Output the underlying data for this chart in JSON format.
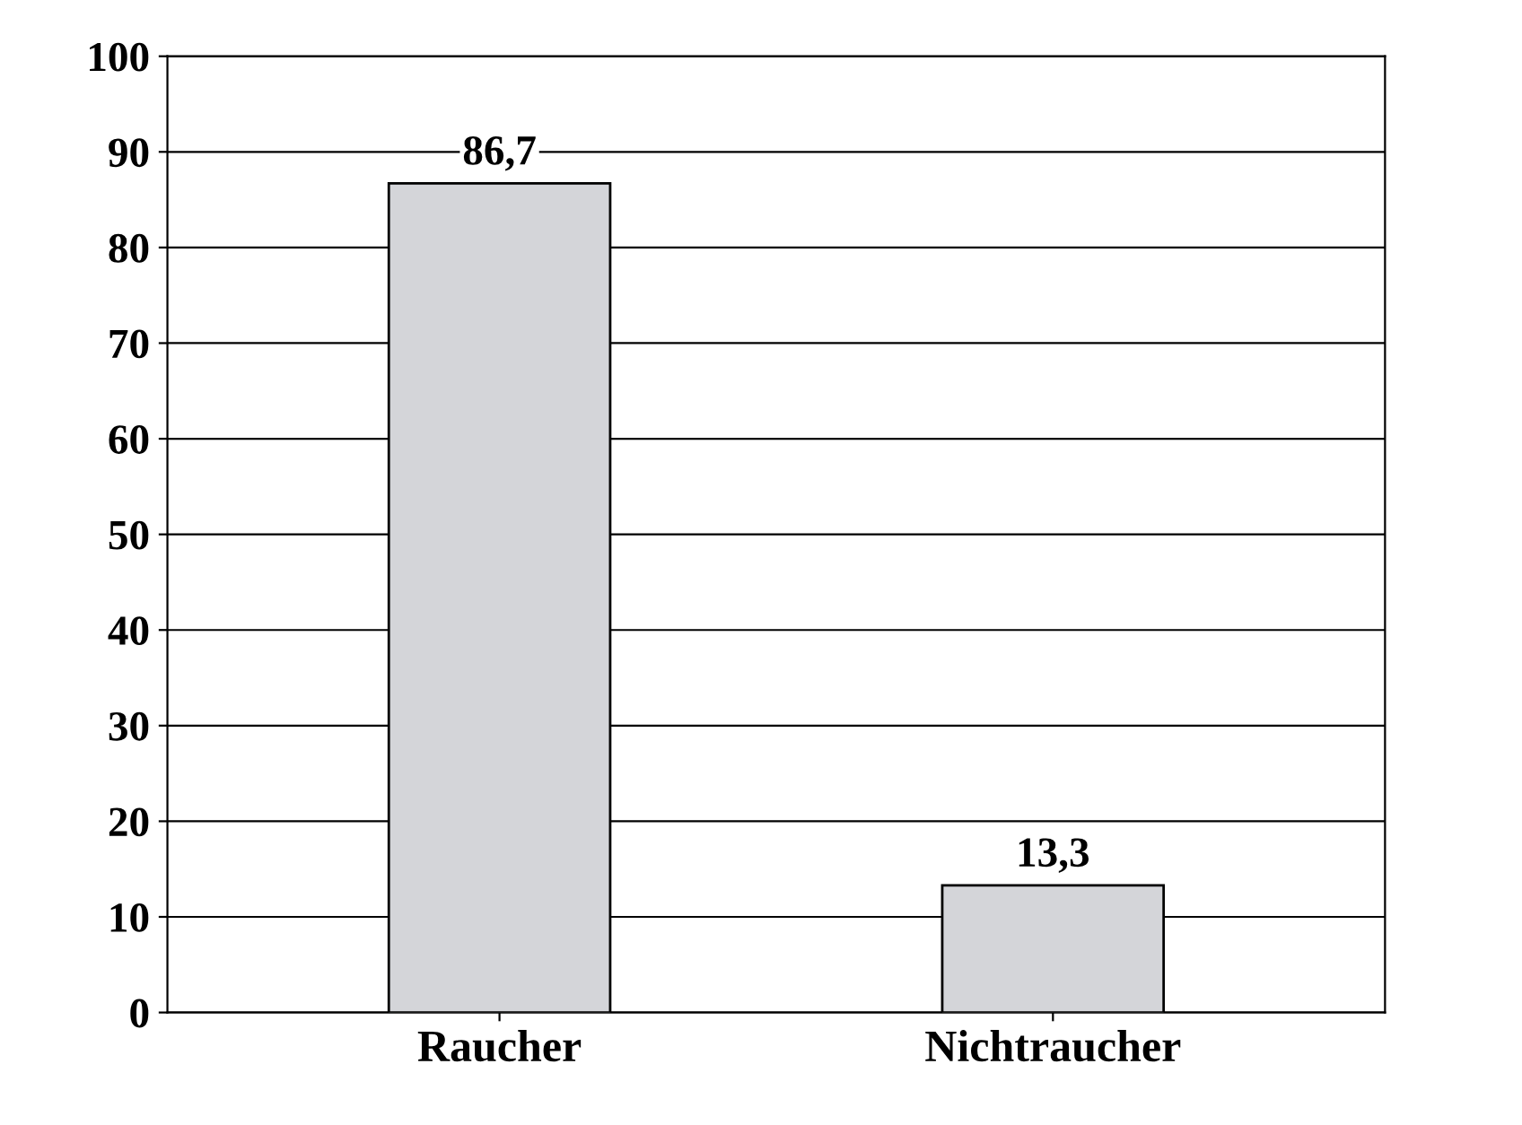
{
  "chart_data": {
    "type": "bar",
    "categories": [
      "Raucher",
      "Nichtraucher"
    ],
    "values": [
      86.7,
      13.3
    ],
    "value_labels": [
      "86,7",
      "13,3"
    ],
    "color": "#d4d5d9",
    "ylim": [
      0,
      100
    ],
    "yticks": [
      0,
      10,
      20,
      30,
      40,
      50,
      60,
      70,
      80,
      90,
      100
    ],
    "grid": "y"
  }
}
